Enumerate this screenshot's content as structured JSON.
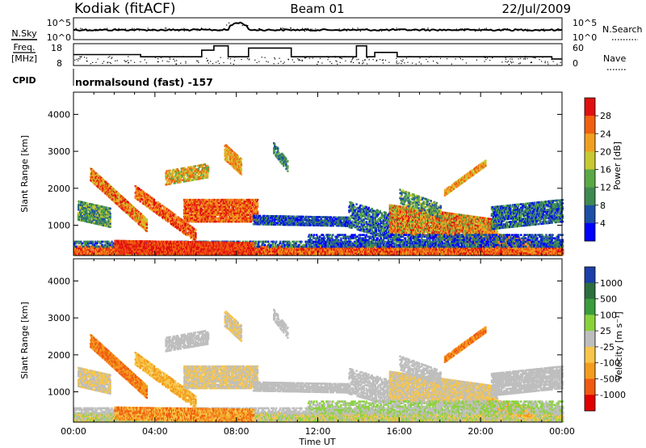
{
  "header": {
    "station": "Kodiak (fitACF)",
    "beam": "Beam 01",
    "date": "22/Jul/2009"
  },
  "noise_panel": {
    "left_label": "N.Sky",
    "right_label": "N.Search",
    "left_ticks": [
      "10^5",
      "10^0"
    ],
    "right_ticks": [
      "10^5",
      "10^0"
    ]
  },
  "freq_panel": {
    "left_label_1": "Freq.",
    "left_label_2": "[MHz]",
    "right_label": "Nave",
    "left_ticks": [
      "18",
      "8"
    ],
    "right_ticks": [
      "60",
      "0"
    ]
  },
  "cpid": {
    "label": "CPID",
    "text": "normalsound (fast) -157"
  },
  "colors": {
    "power_scale": [
      "#0000ff",
      "#1d4fa6",
      "#3f8a52",
      "#5aa946",
      "#c8c832",
      "#f0a020",
      "#f06010",
      "#e01010"
    ],
    "velocity_scale": [
      "#1c3faa",
      "#2c6e3e",
      "#3b9c3b",
      "#8ad23c",
      "#bebebe",
      "#f7c64a",
      "#f39c1d",
      "#f05a12",
      "#e00000"
    ]
  },
  "chart_data": [
    {
      "type": "heatmap",
      "name": "power",
      "xlabel": "",
      "ylabel": "Slant Range [km]",
      "xlim": [
        "00:00",
        "24:00"
      ],
      "ylim": [
        180,
        4600
      ],
      "yticks": [
        "1000",
        "2000",
        "3000",
        "4000"
      ],
      "colorbar_label": "Power [dB]",
      "colorbar_ticks": [
        "28",
        "24",
        "20",
        "16",
        "12",
        "8",
        "4"
      ]
    },
    {
      "type": "heatmap",
      "name": "velocity",
      "xlabel": "Time UT",
      "ylabel": "Slant Range [km]",
      "xlim": [
        "00:00",
        "24:00"
      ],
      "ylim": [
        180,
        4600
      ],
      "xticks": [
        "00:00",
        "04:00",
        "08:00",
        "12:00",
        "16:00",
        "20:00",
        "00:00"
      ],
      "yticks": [
        "1000",
        "2000",
        "3000",
        "4000"
      ],
      "colorbar_label": "Velocity [m s⁻¹]",
      "colorbar_ticks": [
        "1000",
        "500",
        "100",
        "25",
        "-25",
        "-100",
        "-500",
        "-1000"
      ]
    }
  ]
}
